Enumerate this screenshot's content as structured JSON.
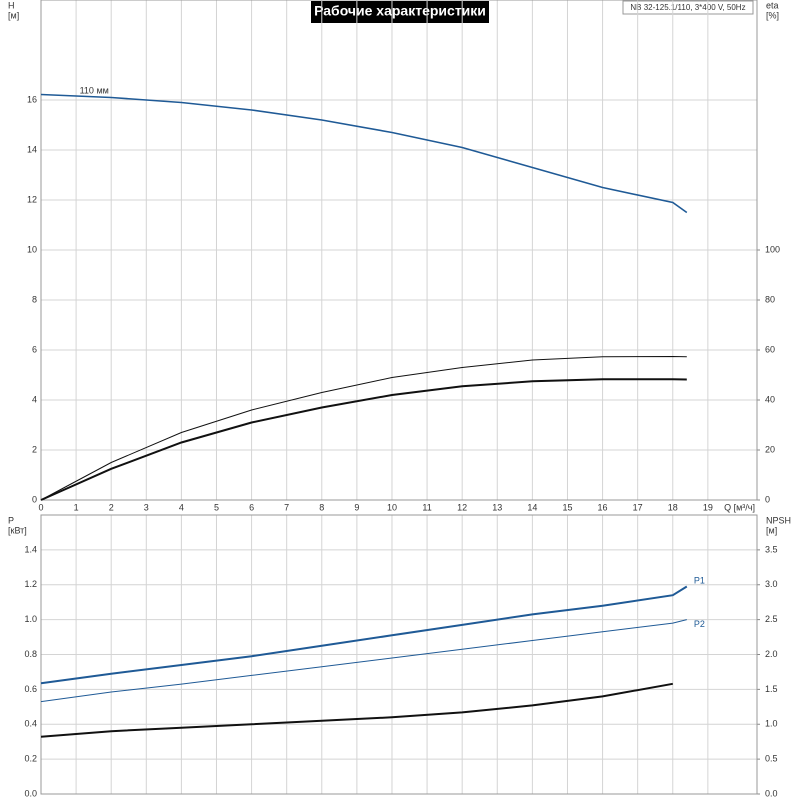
{
  "chart_data": [
    {
      "type": "line",
      "title": "Рабочие характеристики",
      "subtitle": "NB 32-125.1/110, 3*400 V, 50Hz",
      "xlabel": "Q [м³/ч]",
      "ylabel": [
        "H",
        "[м]"
      ],
      "y2label": [
        "eta",
        "[%]"
      ],
      "x": [
        0,
        2,
        4,
        6,
        8,
        10,
        12,
        14,
        16,
        18,
        18.4
      ],
      "series": [
        {
          "color": "#1f5a96",
          "values": [
            16.22,
            16.1,
            15.9,
            15.6,
            15.2,
            14.7,
            14.1,
            13.3,
            12.5,
            11.9,
            11.5
          ]
        },
        {
          "color": "#111111",
          "axis": "y2",
          "values": [
            0,
            15,
            27,
            36,
            43,
            49,
            53,
            56,
            57.3,
            57.4,
            57.3
          ]
        },
        {
          "color": "#111111",
          "axis": "y2",
          "values": [
            0,
            12.5,
            23,
            31,
            37,
            42,
            45.5,
            47.5,
            48.3,
            48.3,
            48.2
          ]
        }
      ],
      "annotations": [
        {
          "text": "110 мм",
          "x": 1.1,
          "y": 16.35
        }
      ],
      "xlim": [
        0,
        20.4
      ],
      "xticks": [
        0,
        1,
        2,
        3,
        4,
        5,
        6,
        7,
        8,
        9,
        10,
        11,
        12,
        13,
        14,
        15,
        16,
        17,
        18,
        19
      ],
      "ylim": [
        0,
        20
      ],
      "yticks": [
        0,
        2,
        4,
        6,
        8,
        10,
        12,
        14,
        16
      ],
      "y2lim": [
        0,
        200
      ],
      "y2ticks": [
        0,
        20,
        40,
        60,
        80,
        100
      ],
      "grid": true
    },
    {
      "type": "line",
      "ylabel": [
        "P",
        "[кВт]"
      ],
      "y2label": [
        "NPSH",
        "[м]"
      ],
      "x": [
        0,
        2,
        4,
        6,
        8,
        10,
        12,
        14,
        16,
        18,
        18.4
      ],
      "series": [
        {
          "color": "#1f5a96",
          "values": [
            0.635,
            0.69,
            0.74,
            0.79,
            0.85,
            0.91,
            0.97,
            1.03,
            1.08,
            1.14,
            1.19
          ]
        },
        {
          "color": "#1f5a96",
          "values": [
            0.53,
            0.585,
            0.63,
            0.68,
            0.73,
            0.78,
            0.83,
            0.88,
            0.93,
            0.98,
            1.0
          ]
        },
        {
          "color": "#111111",
          "axis": "y2",
          "values": [
            0.82,
            0.9,
            0.95,
            1.0,
            1.05,
            1.1,
            1.17,
            1.27,
            1.4,
            1.58,
            null
          ]
        }
      ],
      "annotations": [
        {
          "text": "P1",
          "x": 18.6,
          "y": 1.22
        },
        {
          "text": "P2",
          "x": 18.6,
          "y": 0.97
        }
      ],
      "xlim": [
        0,
        20.4
      ],
      "xticks": [
        0,
        1,
        2,
        3,
        4,
        5,
        6,
        7,
        8,
        9,
        10,
        11,
        12,
        13,
        14,
        15,
        16,
        17,
        18,
        19
      ],
      "xtick_labels": false,
      "ylim": [
        0,
        1.6
      ],
      "yticks": [
        {
          "value": 0,
          "label": "0.0"
        },
        0.2,
        0.4,
        0.6,
        0.8,
        {
          "value": 1,
          "label": "1.0"
        },
        1.2,
        1.4
      ],
      "y2lim": [
        0,
        4
      ],
      "y2ticks": [
        {
          "value": 0,
          "label": "0.0"
        },
        0.5,
        {
          "value": 1,
          "label": "1.0"
        },
        1.5,
        {
          "value": 2,
          "label": "2.0"
        },
        2.5,
        {
          "value": 3,
          "label": "3.0"
        },
        3.5
      ],
      "grid": true
    }
  ]
}
